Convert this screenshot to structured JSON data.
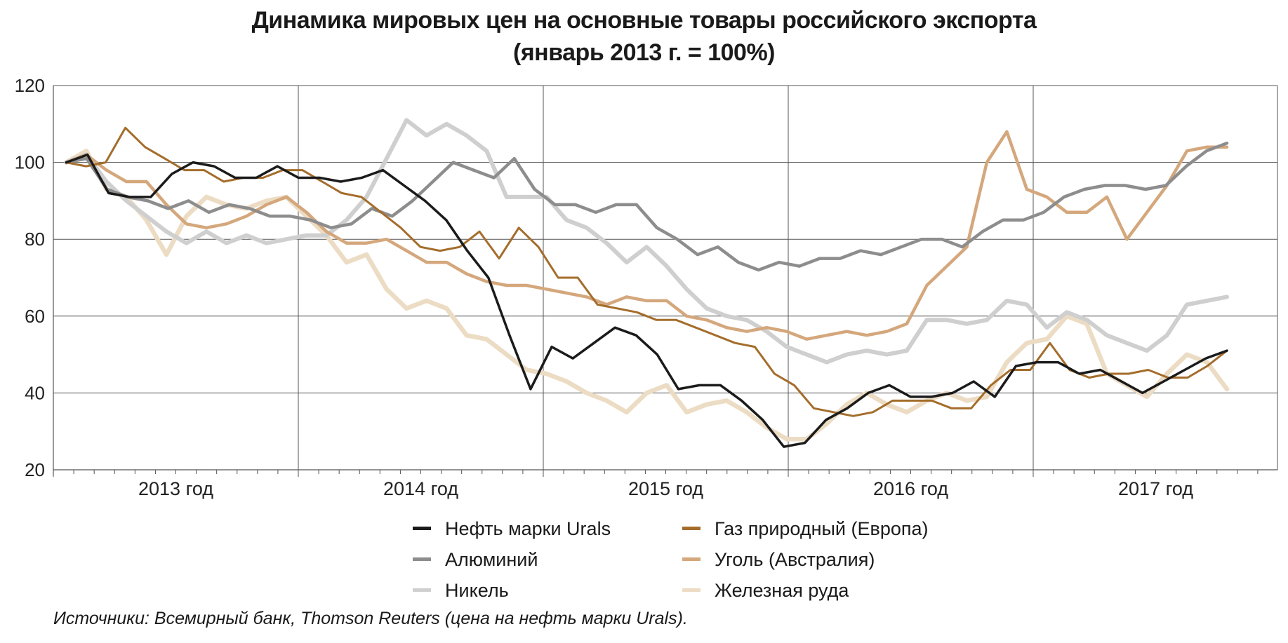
{
  "chart_data": {
    "type": "line",
    "title": "Динамика мировых цен на основные товары российского экспорта",
    "subtitle": "(январь 2013 г. = 100%)",
    "xlabel": "",
    "ylabel": "",
    "ylim": [
      20,
      120
    ],
    "yticks": [
      "20",
      "40",
      "60",
      "80",
      "100",
      "120"
    ],
    "x_period_labels": [
      "2013 год",
      "2014 год",
      "2015 год",
      "2016 год",
      "2017 год"
    ],
    "x_start": "2013-01",
    "x_end": "2017-06",
    "grid": true,
    "legend_position": "bottom",
    "series": [
      {
        "name": "Нефть марки Urals",
        "color": "#1b1b1b",
        "width": 3.5,
        "values": [
          100,
          102,
          92,
          91,
          91,
          97,
          100,
          99,
          96,
          96,
          99,
          96,
          96,
          95,
          96,
          98,
          94,
          90,
          85,
          77,
          70,
          55,
          41,
          52,
          49,
          53,
          57,
          55,
          50,
          41,
          42,
          42,
          38,
          33,
          26,
          27,
          33,
          36,
          40,
          42,
          39,
          39,
          40,
          43,
          39,
          47,
          48,
          48,
          45,
          46,
          43,
          40,
          43,
          46,
          49,
          51
        ]
      },
      {
        "name": "Газ природный (Европа)",
        "color": "#a46d2b",
        "width": 3,
        "values": [
          100,
          99,
          100,
          109,
          104,
          101,
          98,
          98,
          95,
          96,
          96,
          98,
          98,
          95,
          92,
          91,
          87,
          83,
          78,
          77,
          78,
          82,
          75,
          83,
          78,
          70,
          70,
          63,
          62,
          61,
          59,
          59,
          57,
          55,
          53,
          52,
          45,
          42,
          36,
          35,
          34,
          35,
          38,
          38,
          38,
          36,
          36,
          42,
          46,
          46,
          53,
          46,
          44,
          45,
          45,
          46,
          44,
          44,
          47,
          51
        ]
      },
      {
        "name": "Алюминий",
        "color": "#8d8d8d",
        "width": 4.5,
        "values": [
          100,
          101,
          93,
          91,
          90,
          88,
          90,
          87,
          89,
          88,
          86,
          86,
          85,
          83,
          84,
          88,
          86,
          90,
          95,
          100,
          98,
          96,
          101,
          93,
          89,
          89,
          87,
          89,
          89,
          83,
          80,
          76,
          78,
          74,
          72,
          74,
          73,
          75,
          75,
          77,
          76,
          78,
          80,
          80,
          78,
          82,
          85,
          85,
          87,
          91,
          93,
          94,
          94,
          93,
          94,
          99,
          103,
          105
        ]
      },
      {
        "name": "Уголь (Австралия)",
        "color": "#d4a77c",
        "width": 4.5,
        "values": [
          100,
          102,
          98,
          95,
          95,
          89,
          84,
          83,
          84,
          86,
          89,
          91,
          87,
          82,
          79,
          79,
          80,
          77,
          74,
          74,
          71,
          69,
          68,
          68,
          67,
          66,
          65,
          63,
          65,
          64,
          64,
          60,
          59,
          57,
          56,
          57,
          56,
          54,
          55,
          56,
          55,
          56,
          58,
          68,
          73,
          78,
          100,
          108,
          93,
          91,
          87,
          87,
          91,
          80,
          87,
          94,
          103,
          104,
          104
        ]
      },
      {
        "name": "Никель",
        "color": "#cfcfcf",
        "width": 6,
        "values": [
          100,
          102,
          95,
          90,
          86,
          82,
          79,
          82,
          79,
          81,
          79,
          80,
          81,
          81,
          85,
          91,
          101,
          111,
          107,
          110,
          107,
          103,
          91,
          91,
          91,
          85,
          83,
          79,
          74,
          78,
          73,
          67,
          62,
          60,
          59,
          56,
          52,
          50,
          48,
          50,
          51,
          50,
          51,
          59,
          59,
          58,
          59,
          64,
          63,
          57,
          61,
          59,
          55,
          53,
          51,
          55,
          63,
          64,
          65
        ]
      },
      {
        "name": "Железная руда",
        "color": "#ecdcc4",
        "width": 6.5,
        "values": [
          100,
          103,
          93,
          91,
          85,
          76,
          86,
          91,
          89,
          88,
          90,
          91,
          86,
          81,
          74,
          76,
          67,
          62,
          64,
          62,
          55,
          54,
          50,
          46,
          45,
          43,
          40,
          38,
          35,
          40,
          42,
          35,
          37,
          38,
          35,
          31,
          28,
          28,
          32,
          37,
          40,
          37,
          35,
          38,
          40,
          38,
          39,
          48,
          53,
          54,
          60,
          58,
          45,
          42,
          39,
          45,
          50,
          48,
          41
        ]
      }
    ]
  },
  "source_note": "Источники: Всемирный банк, Thomson Reuters (цена на нефть марки Urals)."
}
